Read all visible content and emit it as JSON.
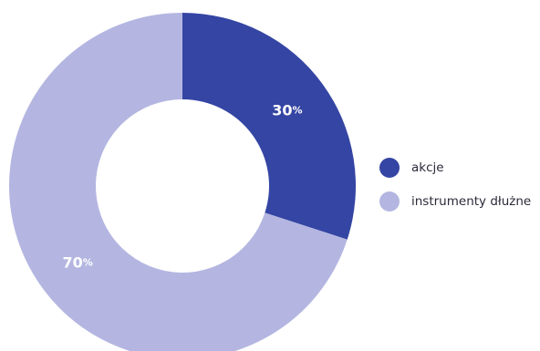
{
  "chart_data": {
    "type": "pie",
    "style": "donut",
    "categories": [
      "akcje",
      "instrumenty dłużne"
    ],
    "values": [
      30,
      70
    ],
    "data_labels": [
      "30%",
      "70%"
    ],
    "colors": [
      "#3445a3",
      "#b4b6e1"
    ],
    "legend": {
      "placement": "right",
      "items": [
        {
          "label": "akcje",
          "color": "#3445a3"
        },
        {
          "label": "instrumenty dłużne",
          "color": "#b4b6e1"
        }
      ]
    }
  }
}
